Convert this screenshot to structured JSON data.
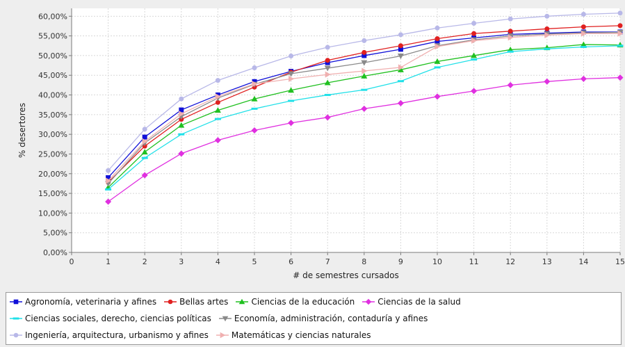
{
  "chart_data": {
    "type": "line",
    "xlabel": "# de semestres cursados",
    "ylabel": "% desertores",
    "xlim": [
      0,
      15
    ],
    "ylim": [
      0,
      62
    ],
    "x_ticks": [
      "0",
      "1",
      "2",
      "3",
      "4",
      "5",
      "6",
      "7",
      "8",
      "9",
      "10",
      "11",
      "12",
      "13",
      "14",
      "15"
    ],
    "y_ticks": [
      "0,00%",
      "5,00%",
      "10,00%",
      "15,00%",
      "20,00%",
      "25,00%",
      "30,00%",
      "35,00%",
      "40,00%",
      "45,00%",
      "50,00%",
      "55,00%",
      "60,00%"
    ],
    "grid": true,
    "legend_position": "bottom",
    "x": [
      1,
      2,
      3,
      4,
      5,
      6,
      7,
      8,
      9,
      10,
      11,
      12,
      13,
      14,
      15
    ],
    "series": [
      {
        "name": "Agronomía, veterinaria y afines",
        "color": "#1010d8",
        "marker": "square",
        "values": [
          19.0,
          29.3,
          36.2,
          40.0,
          43.4,
          46.0,
          48.2,
          50.0,
          51.6,
          53.6,
          54.5,
          55.4,
          55.7,
          56.0,
          56.0
        ]
      },
      {
        "name": "Bellas artes",
        "color": "#e02020",
        "marker": "circle",
        "values": [
          17.8,
          27.0,
          33.8,
          38.1,
          42.0,
          45.8,
          48.8,
          50.8,
          52.5,
          54.3,
          55.6,
          56.2,
          56.8,
          57.3,
          57.6
        ]
      },
      {
        "name": "Ciencias de la educación",
        "color": "#20c020",
        "marker": "triangle-up",
        "values": [
          16.5,
          25.5,
          32.3,
          36.1,
          39.0,
          41.2,
          43.1,
          44.8,
          46.4,
          48.5,
          50.0,
          51.5,
          52.0,
          52.8,
          52.7
        ]
      },
      {
        "name": "Ciencias de la salud",
        "color": "#e030e0",
        "marker": "diamond",
        "values": [
          12.9,
          19.6,
          25.1,
          28.5,
          31.0,
          32.9,
          34.3,
          36.5,
          37.9,
          39.6,
          41.0,
          42.5,
          43.4,
          44.1,
          44.4
        ]
      },
      {
        "name": "Ciencias sociales, derecho, ciencias políticas",
        "color": "#20e0e8",
        "marker": "rect",
        "values": [
          16.0,
          24.0,
          30.0,
          33.9,
          36.5,
          38.5,
          40.0,
          41.3,
          43.5,
          47.0,
          49.0,
          51.0,
          51.7,
          52.2,
          52.5
        ]
      },
      {
        "name": "Economía, administración, contaduría y afines",
        "color": "#8a8a8a",
        "marker": "triangle-down",
        "values": [
          17.5,
          27.8,
          34.5,
          39.2,
          42.7,
          45.4,
          46.8,
          48.2,
          49.9,
          52.5,
          54.0,
          55.0,
          55.5,
          55.8,
          55.9
        ]
      },
      {
        "name": "Ingeniería, arquitectura, urbanismo y afines",
        "color": "#b8b8e8",
        "marker": "circle",
        "values": [
          20.8,
          31.3,
          39.0,
          43.7,
          46.9,
          49.9,
          52.1,
          53.8,
          55.3,
          57.0,
          58.2,
          59.3,
          60.0,
          60.5,
          60.8
        ]
      },
      {
        "name": "Matemáticas y ciencias naturales",
        "color": "#f0b0b0",
        "marker": "triangle-right",
        "values": [
          18.2,
          28.2,
          35.2,
          39.6,
          42.8,
          44.1,
          45.2,
          46.1,
          47.0,
          52.3,
          53.8,
          54.6,
          55.2,
          55.6,
          55.6
        ]
      }
    ]
  }
}
